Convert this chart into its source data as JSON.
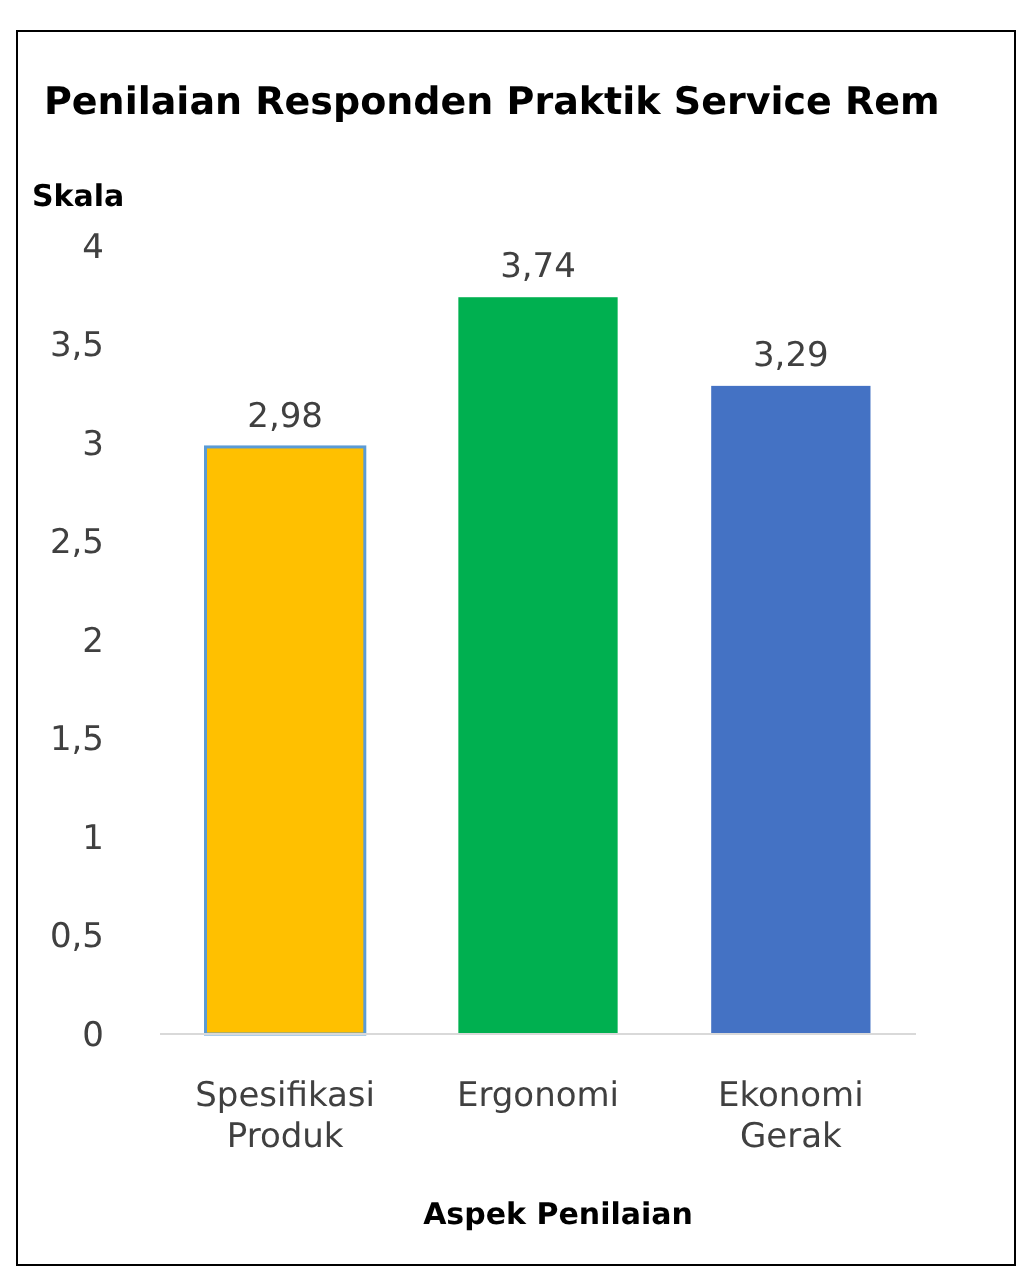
{
  "chart_data": {
    "type": "bar",
    "title": "Penilaian Responden Praktik Service Rem",
    "ylabel": "Skala",
    "xlabel": "Aspek Penilaian",
    "categories": [
      "Spesifikasi Produk",
      "Ergonomi",
      "Ekonomi Gerak"
    ],
    "values": [
      2.98,
      3.74,
      3.29
    ],
    "colors": [
      "#ffc000",
      "#00b050",
      "#4472c4"
    ],
    "value_labels": [
      "2,98",
      "3,74",
      "3,29"
    ],
    "ylim": [
      0,
      4
    ],
    "yticks": [
      0,
      {
        "value": 0.5,
        "label": "0,5"
      },
      1,
      {
        "value": 1.5,
        "label": "1,5"
      },
      2,
      {
        "value": 2.5,
        "label": "2,5"
      },
      3,
      {
        "value": 3.5,
        "label": "3,5"
      },
      4
    ],
    "grid": false
  }
}
